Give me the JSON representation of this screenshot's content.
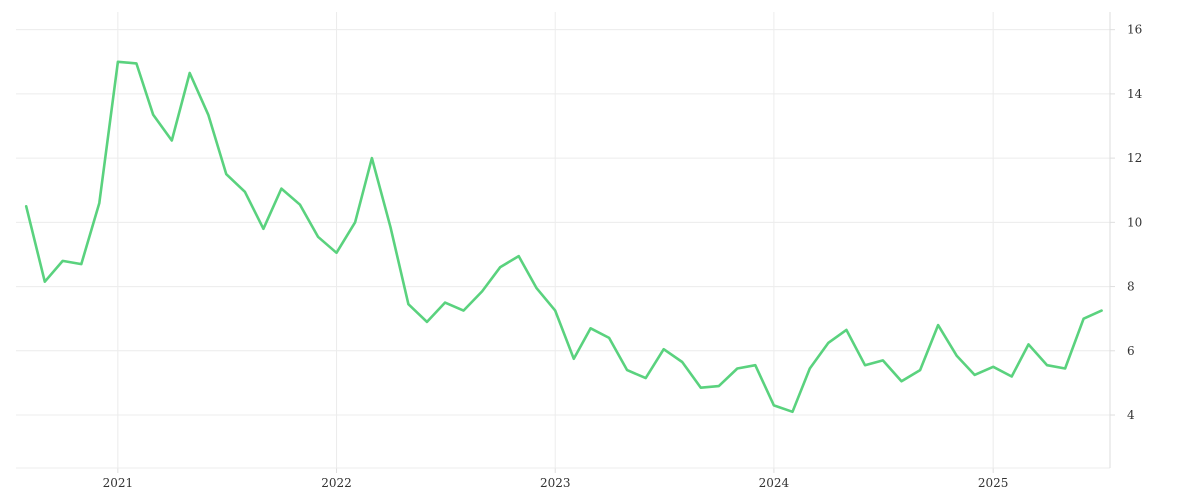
{
  "chart_data": {
    "type": "line",
    "title": "",
    "xlabel": "",
    "ylabel": "",
    "x_tick_labels": [
      "2021",
      "2022",
      "2023",
      "2024",
      "2025"
    ],
    "y_tick_labels": [
      "4",
      "6",
      "8",
      "10",
      "12",
      "14",
      "16"
    ],
    "y_ticks": [
      4,
      6,
      8,
      10,
      12,
      14,
      16
    ],
    "ylim": [
      2.35,
      16.55
    ],
    "xlim": [
      "2020-07-15",
      "2025-07-15"
    ],
    "grid": true,
    "y_axis_position": "right",
    "series": [
      {
        "color": "#5ad27e",
        "x": [
          "2020-08-01",
          "2020-09-01",
          "2020-10-01",
          "2020-11-01",
          "2020-12-01",
          "2021-01-01",
          "2021-02-01",
          "2021-03-01",
          "2021-04-01",
          "2021-05-01",
          "2021-06-01",
          "2021-07-01",
          "2021-08-01",
          "2021-09-01",
          "2021-10-01",
          "2021-11-01",
          "2021-12-01",
          "2022-01-01",
          "2022-02-01",
          "2022-03-01",
          "2022-04-01",
          "2022-05-01",
          "2022-06-01",
          "2022-07-01",
          "2022-08-01",
          "2022-09-01",
          "2022-10-01",
          "2022-11-01",
          "2022-12-01",
          "2023-01-01",
          "2023-02-01",
          "2023-03-01",
          "2023-04-01",
          "2023-05-01",
          "2023-06-01",
          "2023-07-01",
          "2023-08-01",
          "2023-09-01",
          "2023-10-01",
          "2023-11-01",
          "2023-12-01",
          "2024-01-01",
          "2024-02-01",
          "2024-03-01",
          "2024-04-01",
          "2024-05-01",
          "2024-06-01",
          "2024-07-01",
          "2024-08-01",
          "2024-09-01",
          "2024-10-01",
          "2024-11-01",
          "2024-12-01",
          "2025-01-01",
          "2025-02-01",
          "2025-03-01",
          "2025-04-01",
          "2025-05-01",
          "2025-06-01",
          "2025-07-01"
        ],
        "values": [
          10.5,
          8.15,
          8.8,
          8.7,
          10.6,
          15.0,
          14.95,
          13.35,
          12.55,
          14.65,
          13.35,
          11.5,
          10.95,
          9.8,
          11.05,
          10.55,
          9.55,
          9.05,
          10.0,
          12.0,
          9.85,
          7.45,
          6.9,
          7.5,
          7.25,
          7.85,
          8.6,
          8.95,
          7.95,
          7.25,
          5.75,
          6.7,
          6.4,
          5.4,
          5.15,
          6.05,
          5.65,
          4.85,
          4.9,
          5.45,
          5.55,
          4.3,
          4.1,
          5.45,
          6.25,
          6.65,
          5.55,
          5.7,
          5.05,
          5.4,
          6.8,
          5.85,
          5.25,
          5.5,
          5.2,
          6.2,
          5.55,
          5.45,
          7.0,
          7.25
        ]
      }
    ]
  }
}
